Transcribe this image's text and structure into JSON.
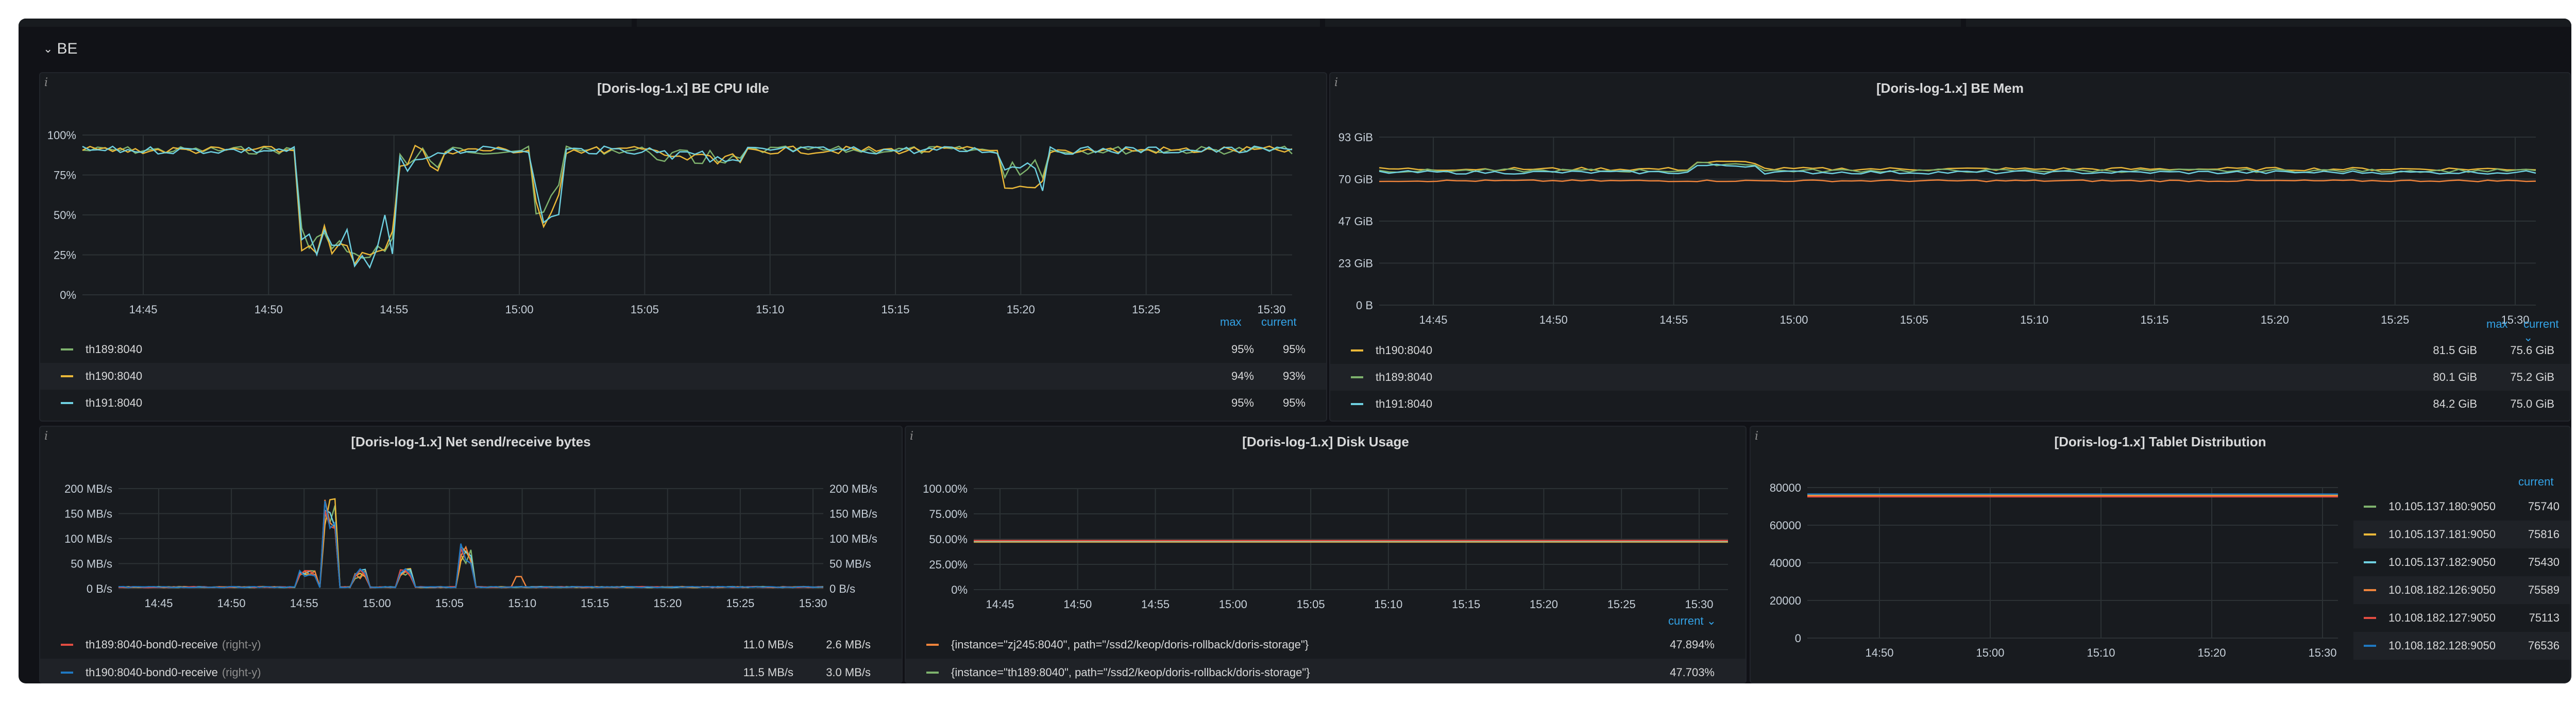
{
  "row": {
    "title": "BE",
    "icon": "chevron-down-icon"
  },
  "panels": {
    "cpu": {
      "title": "[Doris-log-1.x] BE CPU Idle",
      "yticks": [
        "100%",
        "75%",
        "50%",
        "25%",
        "0%"
      ],
      "xticks": [
        "14:45",
        "14:50",
        "14:55",
        "15:00",
        "15:05",
        "15:10",
        "15:15",
        "15:20",
        "15:25",
        "15:30"
      ],
      "col_max": "max",
      "col_current": "current",
      "legend": [
        {
          "name": "th189:8040",
          "max": "95%",
          "current": "95%",
          "color": "#7eb26d"
        },
        {
          "name": "th190:8040",
          "max": "94%",
          "current": "93%",
          "color": "#eab839"
        },
        {
          "name": "th191:8040",
          "max": "95%",
          "current": "95%",
          "color": "#6ed0e0"
        }
      ]
    },
    "mem": {
      "title": "[Doris-log-1.x] BE Mem",
      "yticks": [
        "93 GiB",
        "70 GiB",
        "47 GiB",
        "23 GiB",
        "0 B"
      ],
      "xticks": [
        "14:45",
        "14:50",
        "14:55",
        "15:00",
        "15:05",
        "15:10",
        "15:15",
        "15:20",
        "15:25",
        "15:30"
      ],
      "col_max": "max",
      "col_current": "current",
      "legend": [
        {
          "name": "th190:8040",
          "max": "81.5 GiB",
          "current": "75.6 GiB",
          "color": "#eab839"
        },
        {
          "name": "th189:8040",
          "max": "80.1 GiB",
          "current": "75.2 GiB",
          "color": "#7eb26d"
        },
        {
          "name": "th191:8040",
          "max": "84.2 GiB",
          "current": "75.0 GiB",
          "color": "#6ed0e0"
        }
      ]
    },
    "net": {
      "title": "[Doris-log-1.x] Net send/receive bytes",
      "yticks_left": [
        "200 MB/s",
        "150 MB/s",
        "100 MB/s",
        "50 MB/s",
        "0 B/s"
      ],
      "yticks_right": [
        "200 MB/s",
        "150 MB/s",
        "100 MB/s",
        "50 MB/s",
        "0 B/s"
      ],
      "xticks": [
        "14:45",
        "14:50",
        "14:55",
        "15:00",
        "15:05",
        "15:10",
        "15:15",
        "15:20",
        "15:25",
        "15:30"
      ],
      "legend": [
        {
          "name": "th189:8040-bond0-receive",
          "axis": "(right-y)",
          "max": "11.0 MB/s",
          "current": "2.6 MB/s",
          "color": "#e24d42"
        },
        {
          "name": "th190:8040-bond0-receive",
          "axis": "(right-y)",
          "max": "11.5 MB/s",
          "current": "3.0 MB/s",
          "color": "#1f78c1"
        }
      ]
    },
    "disk": {
      "title": "[Doris-log-1.x] Disk Usage",
      "yticks": [
        "100.00%",
        "75.00%",
        "50.00%",
        "25.00%",
        "0%"
      ],
      "xticks": [
        "14:45",
        "14:50",
        "14:55",
        "15:00",
        "15:05",
        "15:10",
        "15:15",
        "15:20",
        "15:25",
        "15:30"
      ],
      "col_current": "current",
      "legend": [
        {
          "name": "{instance=\"zj245:8040\", path=\"/ssd2/keop/doris-rollback/doris-storage\"}",
          "current": "47.894%",
          "color": "#ef843c"
        },
        {
          "name": "{instance=\"th189:8040\", path=\"/ssd2/keop/doris-rollback/doris-storage\"}",
          "current": "47.703%",
          "color": "#7eb26d"
        }
      ]
    },
    "tablet": {
      "title": "[Doris-log-1.x] Tablet Distribution",
      "yticks": [
        "80000",
        "60000",
        "40000",
        "20000",
        "0"
      ],
      "xticks": [
        "14:50",
        "15:00",
        "15:10",
        "15:20",
        "15:30"
      ],
      "col_current": "current",
      "legend": [
        {
          "name": "10.105.137.180:9050",
          "current": "75740",
          "color": "#7eb26d"
        },
        {
          "name": "10.105.137.181:9050",
          "current": "75816",
          "color": "#eab839"
        },
        {
          "name": "10.105.137.182:9050",
          "current": "75430",
          "color": "#6ed0e0"
        },
        {
          "name": "10.108.182.126:9050",
          "current": "75589",
          "color": "#ef843c"
        },
        {
          "name": "10.108.182.127:9050",
          "current": "75113",
          "color": "#e24d42"
        },
        {
          "name": "10.108.182.128:9050",
          "current": "76536",
          "color": "#1f78c1"
        }
      ]
    }
  }
}
